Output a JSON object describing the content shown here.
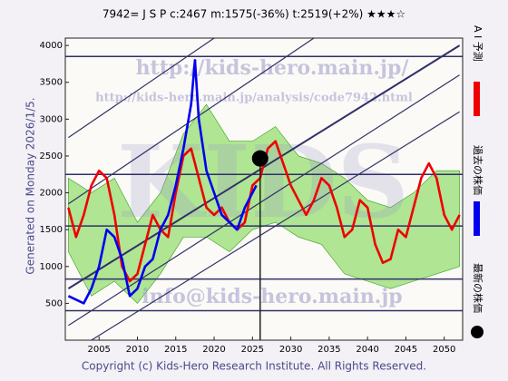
{
  "chart_data": {
    "type": "line",
    "title": "7942= J S P    c:2467  m:1575(-36%)  t:2519(+2%)  ★★★☆",
    "side_label": "Generated on Monday 2026/1/5.",
    "footer": "Copyright (c) Kids-Hero Research Institute. All Rights Reserved.",
    "watermarks": [
      "http://kids-hero.main.jp/",
      "http://kids-hero.main.jp/analysis/code7942.html",
      "info@kids-hero.main.jp",
      "KIDS"
    ],
    "xlim": [
      2000.6,
      2052.4
    ],
    "xticks": [
      2005,
      2010,
      2015,
      2020,
      2025,
      2030,
      2035,
      2040,
      2045,
      2050
    ],
    "ylim": [
      0,
      4100
    ],
    "yticks": [
      500,
      1000,
      1500,
      2000,
      2500,
      3000,
      3500,
      4000
    ],
    "band": {
      "color": "#8fdc6a",
      "x": [
        2001,
        2004,
        2007,
        2010,
        2013,
        2016,
        2019,
        2022,
        2025,
        2028,
        2031,
        2034,
        2037,
        2040,
        2043,
        2046,
        2049,
        2052
      ],
      "lower": [
        1200,
        600,
        800,
        500,
        900,
        1400,
        1400,
        1200,
        1500,
        1600,
        1400,
        1300,
        900,
        800,
        700,
        800,
        900,
        1000
      ],
      "upper": [
        2200,
        2000,
        2200,
        1600,
        2000,
        2800,
        3200,
        2700,
        2700,
        2900,
        2500,
        2400,
        2200,
        1900,
        1800,
        2000,
        2300,
        2300
      ]
    },
    "hlines": [
      3850,
      2250,
      1550,
      830,
      400
    ],
    "trend_lines": [
      [
        2001,
        2750,
        2020,
        4100
      ],
      [
        2001,
        1850,
        2033,
        4100
      ],
      [
        2001,
        700,
        2052,
        4000
      ],
      [
        2001,
        200,
        2052,
        3600
      ],
      [
        2004,
        0,
        2052,
        3100
      ]
    ],
    "series": [
      {
        "name": "A I 予測",
        "color": "#ee0000",
        "x": [
          2001,
          2002,
          2003,
          2004,
          2005,
          2006,
          2007,
          2008,
          2009,
          2010,
          2011,
          2012,
          2013,
          2014,
          2015,
          2016,
          2017,
          2018,
          2019,
          2020,
          2021,
          2022,
          2023,
          2024,
          2025,
          2026,
          2027,
          2028,
          2029,
          2030,
          2031,
          2032,
          2033,
          2034,
          2035,
          2036,
          2037,
          2038,
          2039,
          2040,
          2041,
          2042,
          2043,
          2044,
          2045,
          2046,
          2047,
          2048,
          2049,
          2050,
          2051,
          2052
        ],
        "values": [
          1800,
          1400,
          1700,
          2100,
          2300,
          2200,
          1700,
          1000,
          800,
          900,
          1300,
          1700,
          1500,
          1400,
          2000,
          2500,
          2600,
          2200,
          1800,
          1700,
          1800,
          1600,
          1500,
          1600,
          2100,
          2200,
          2600,
          2700,
          2400,
          2100,
          1900,
          1700,
          1900,
          2200,
          2100,
          1800,
          1400,
          1500,
          1900,
          1800,
          1300,
          1050,
          1100,
          1500,
          1400,
          1800,
          2200,
          2400,
          2200,
          1700,
          1500,
          1700
        ]
      },
      {
        "name": "過去の株価",
        "color": "#0000ee",
        "x": [
          2001,
          2002,
          2003,
          2004,
          2005,
          2006,
          2007,
          2008,
          2009,
          2010,
          2011,
          2012,
          2013,
          2014,
          2015,
          2016,
          2017,
          2017.5,
          2018,
          2019,
          2020,
          2021,
          2022,
          2023,
          2024,
          2025,
          2025.5
        ],
        "values": [
          600,
          550,
          500,
          700,
          1000,
          1500,
          1400,
          1100,
          600,
          700,
          1000,
          1100,
          1500,
          1700,
          2100,
          2600,
          3200,
          3800,
          3000,
          2300,
          2000,
          1700,
          1600,
          1500,
          1800,
          2000,
          2100
        ]
      }
    ],
    "latest": {
      "name": "最新の株価",
      "x": 2026,
      "y": 2467,
      "color": "#000000"
    }
  }
}
